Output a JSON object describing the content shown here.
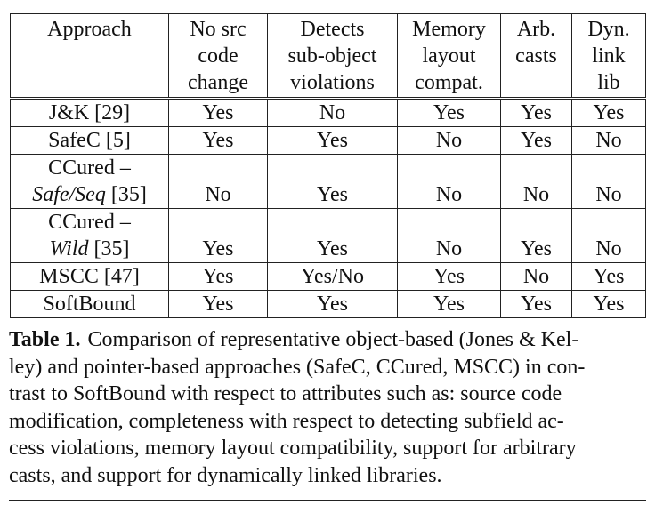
{
  "table": {
    "headers": [
      [
        "Approach"
      ],
      [
        "No src",
        "code",
        "change"
      ],
      [
        "Detects",
        "sub-object",
        "violations"
      ],
      [
        "Memory",
        "layout",
        "compat."
      ],
      [
        "Arb.",
        "casts"
      ],
      [
        "Dyn.",
        "link",
        "lib"
      ]
    ],
    "rows": [
      {
        "approach": [
          "J&K [29]"
        ],
        "no_src_code_change": "Yes",
        "detects_sub_object": "No",
        "memory_layout": "Yes",
        "arb_casts": "Yes",
        "dyn_link_lib": "Yes"
      },
      {
        "approach": [
          "SafeC [5]"
        ],
        "no_src_code_change": "Yes",
        "detects_sub_object": "Yes",
        "memory_layout": "No",
        "arb_casts": "Yes",
        "dyn_link_lib": "No"
      },
      {
        "approach": [
          "CCured –",
          "Safe/Seq",
          " [35]"
        ],
        "no_src_code_change": "No",
        "detects_sub_object": "Yes",
        "memory_layout": "No",
        "arb_casts": "No",
        "dyn_link_lib": "No"
      },
      {
        "approach": [
          "CCured –",
          "Wild",
          " [35]"
        ],
        "no_src_code_change": "Yes",
        "detects_sub_object": "Yes",
        "memory_layout": "No",
        "arb_casts": "Yes",
        "dyn_link_lib": "No"
      },
      {
        "approach": [
          "MSCC [47]"
        ],
        "no_src_code_change": "Yes",
        "detects_sub_object": "Yes/No",
        "memory_layout": "Yes",
        "arb_casts": "No",
        "dyn_link_lib": "Yes"
      },
      {
        "approach": [
          "SoftBound"
        ],
        "no_src_code_change": "Yes",
        "detects_sub_object": "Yes",
        "memory_layout": "Yes",
        "arb_casts": "Yes",
        "dyn_link_lib": "Yes"
      }
    ]
  },
  "caption": {
    "label": "Table 1.",
    "text_lines": [
      "Comparison of representative object-based (Jones & Kel-",
      "ley) and pointer-based approaches (SafeC, CCured, MSCC) in con-",
      "trast to SoftBound with respect to attributes such as: source code",
      "modification, completeness with respect to detecting subfield ac-",
      "cess violations, memory layout compatibility, support for arbitrary",
      "casts, and support for dynamically linked libraries."
    ]
  }
}
